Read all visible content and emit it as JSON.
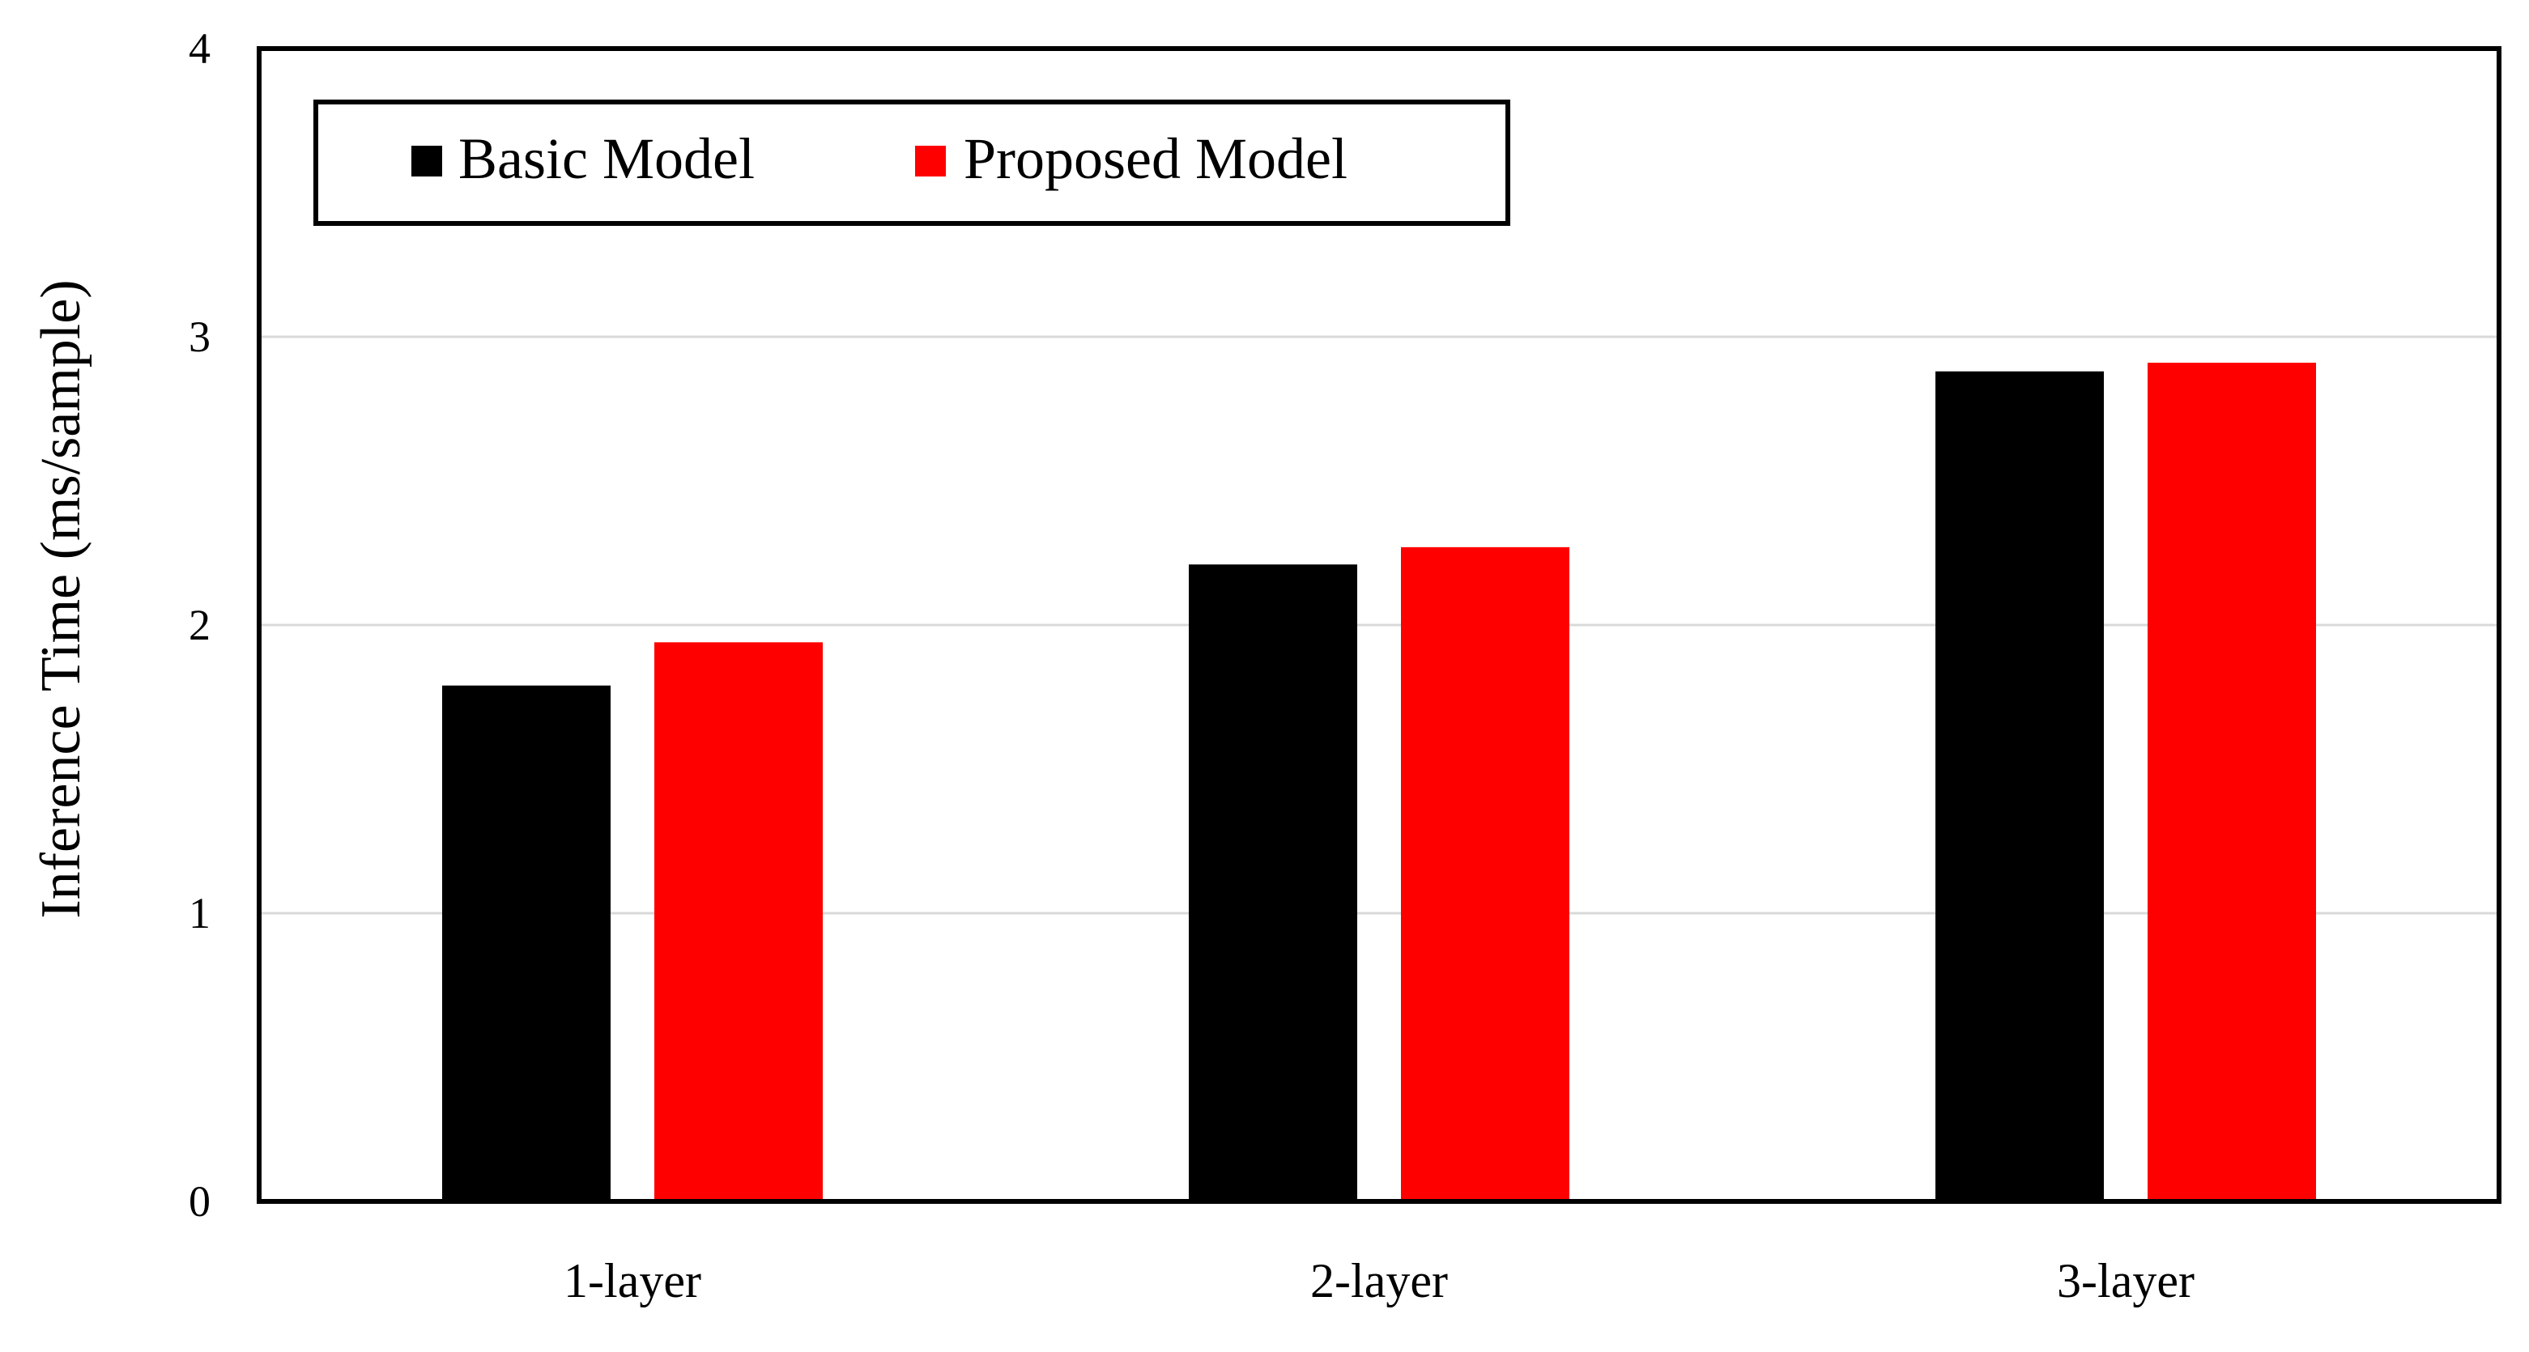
{
  "chart_data": {
    "type": "bar",
    "categories": [
      "1-layer",
      "2-layer",
      "3-layer"
    ],
    "series": [
      {
        "name": "Basic Model",
        "color": "#000000",
        "values": [
          1.79,
          2.21,
          2.88
        ]
      },
      {
        "name": "Proposed Model",
        "color": "#ff0000",
        "values": [
          1.94,
          2.27,
          2.91
        ]
      }
    ],
    "title": "",
    "xlabel": "",
    "ylabel": "Inference Time (ms/sample)",
    "ylim": [
      0,
      4
    ],
    "yticks": [
      "0",
      "1",
      "2",
      "3",
      "4"
    ],
    "grid": true,
    "legend_position": "top-left"
  }
}
